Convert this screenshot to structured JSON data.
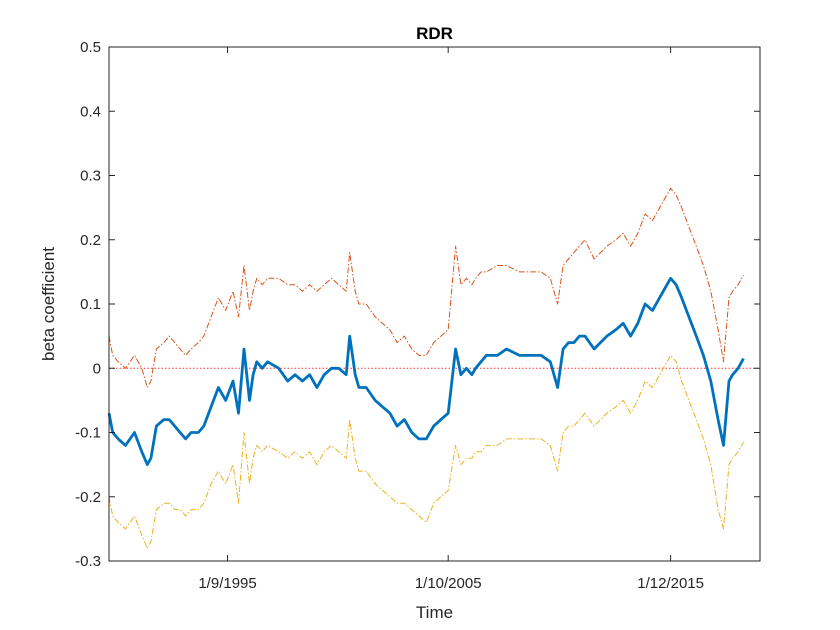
{
  "chart_data": {
    "type": "line",
    "title": "RDR",
    "xlabel": "Time",
    "ylabel": "beta coefficient",
    "xlim": [
      "1990-04-01",
      "2020-01-01"
    ],
    "ylim": [
      -0.3,
      0.5
    ],
    "yticks": [
      -0.3,
      -0.2,
      -0.1,
      0,
      0.1,
      0.2,
      0.3,
      0.4,
      0.5
    ],
    "ytick_labels": [
      "-0.3",
      "-0.2",
      "-0.1",
      "0",
      "0.1",
      "0.2",
      "0.3",
      "0.4",
      "0.5"
    ],
    "xticks": [
      "1995-09-01",
      "2005-10-01",
      "2015-12-01"
    ],
    "xtick_labels": [
      "1/9/1995",
      "1/10/2005",
      "1/12/2015"
    ],
    "grid": false,
    "legend": "none",
    "reference_line": {
      "y": 0,
      "color": "#ff3333",
      "style": "dotted"
    },
    "series": [
      {
        "role": "estimate",
        "color": "#0072bd",
        "style": "solid",
        "x": [
          "1990-04-01",
          "1990-06-01",
          "1990-09-01",
          "1991-01-01",
          "1991-06-01",
          "1991-10-01",
          "1992-01-01",
          "1992-03-01",
          "1992-06-01",
          "1992-10-01",
          "1993-01-01",
          "1993-04-01",
          "1993-07-01",
          "1993-10-01",
          "1994-01-01",
          "1994-05-01",
          "1994-08-01",
          "1994-12-01",
          "1995-04-01",
          "1995-08-01",
          "1995-12-01",
          "1996-03-01",
          "1996-06-01",
          "1996-09-01",
          "1996-11-01",
          "1997-01-01",
          "1997-04-01",
          "1997-07-01",
          "1998-01-01",
          "1998-06-01",
          "1998-10-01",
          "1999-02-01",
          "1999-06-01",
          "1999-10-01",
          "2000-02-01",
          "2000-06-01",
          "2000-10-01",
          "2001-02-01",
          "2001-04-01",
          "2001-07-01",
          "2001-09-01",
          "2002-01-01",
          "2002-06-01",
          "2002-10-01",
          "2003-02-01",
          "2003-06-01",
          "2003-10-01",
          "2004-02-01",
          "2004-06-01",
          "2004-10-01",
          "2005-02-01",
          "2005-06-01",
          "2005-10-01",
          "2006-02-01",
          "2006-05-01",
          "2006-08-01",
          "2006-11-01",
          "2007-01-01",
          "2007-04-01",
          "2007-07-01",
          "2008-01-01",
          "2008-06-01",
          "2009-01-01",
          "2009-06-01",
          "2010-01-01",
          "2010-06-01",
          "2010-10-01",
          "2011-01-01",
          "2011-04-01",
          "2011-07-01",
          "2011-10-01",
          "2012-01-01",
          "2012-06-01",
          "2013-01-01",
          "2013-06-01",
          "2013-10-01",
          "2014-02-01",
          "2014-06-01",
          "2014-10-01",
          "2015-02-01",
          "2015-06-01",
          "2015-12-01",
          "2016-03-01",
          "2016-06-01",
          "2016-10-01",
          "2017-02-01",
          "2017-06-01",
          "2017-10-01",
          "2018-02-01",
          "2018-05-01",
          "2018-08-01",
          "2018-10-01",
          "2019-01-01",
          "2019-04-01"
        ],
        "y": [
          -0.07,
          -0.1,
          -0.11,
          -0.12,
          -0.1,
          -0.13,
          -0.15,
          -0.14,
          -0.09,
          -0.08,
          -0.08,
          -0.09,
          -0.1,
          -0.11,
          -0.1,
          -0.1,
          -0.09,
          -0.06,
          -0.03,
          -0.05,
          -0.02,
          -0.07,
          0.03,
          -0.05,
          -0.01,
          0.01,
          0.0,
          0.01,
          0.0,
          -0.02,
          -0.01,
          -0.02,
          -0.01,
          -0.03,
          -0.01,
          0.0,
          0.0,
          -0.01,
          0.05,
          -0.01,
          -0.03,
          -0.03,
          -0.05,
          -0.06,
          -0.07,
          -0.09,
          -0.08,
          -0.1,
          -0.11,
          -0.11,
          -0.09,
          -0.08,
          -0.07,
          0.03,
          -0.01,
          0.0,
          -0.01,
          0.0,
          0.01,
          0.02,
          0.02,
          0.03,
          0.02,
          0.02,
          0.02,
          0.01,
          -0.03,
          0.03,
          0.04,
          0.04,
          0.05,
          0.05,
          0.03,
          0.05,
          0.06,
          0.07,
          0.05,
          0.07,
          0.1,
          0.09,
          0.11,
          0.14,
          0.13,
          0.11,
          0.08,
          0.05,
          0.02,
          -0.02,
          -0.08,
          -0.12,
          -0.02,
          -0.01,
          0.0,
          0.015
        ]
      },
      {
        "role": "upper",
        "color": "#d95319",
        "style": "dashdot",
        "x": [
          "1990-04-01",
          "1990-06-01",
          "1990-09-01",
          "1991-01-01",
          "1991-06-01",
          "1991-10-01",
          "1992-01-01",
          "1992-03-01",
          "1992-06-01",
          "1992-10-01",
          "1993-01-01",
          "1993-04-01",
          "1993-07-01",
          "1993-10-01",
          "1994-01-01",
          "1994-05-01",
          "1994-08-01",
          "1994-12-01",
          "1995-04-01",
          "1995-08-01",
          "1995-12-01",
          "1996-03-01",
          "1996-06-01",
          "1996-09-01",
          "1996-11-01",
          "1997-01-01",
          "1997-04-01",
          "1997-07-01",
          "1998-01-01",
          "1998-06-01",
          "1998-10-01",
          "1999-02-01",
          "1999-06-01",
          "1999-10-01",
          "2000-02-01",
          "2000-06-01",
          "2000-10-01",
          "2001-02-01",
          "2001-04-01",
          "2001-07-01",
          "2001-09-01",
          "2002-01-01",
          "2002-06-01",
          "2002-10-01",
          "2003-02-01",
          "2003-06-01",
          "2003-10-01",
          "2004-02-01",
          "2004-06-01",
          "2004-10-01",
          "2005-02-01",
          "2005-06-01",
          "2005-10-01",
          "2006-02-01",
          "2006-05-01",
          "2006-08-01",
          "2006-11-01",
          "2007-01-01",
          "2007-04-01",
          "2007-07-01",
          "2008-01-01",
          "2008-06-01",
          "2009-01-01",
          "2009-06-01",
          "2010-01-01",
          "2010-06-01",
          "2010-10-01",
          "2011-01-01",
          "2011-04-01",
          "2011-07-01",
          "2011-10-01",
          "2012-01-01",
          "2012-06-01",
          "2013-01-01",
          "2013-06-01",
          "2013-10-01",
          "2014-02-01",
          "2014-06-01",
          "2014-10-01",
          "2015-02-01",
          "2015-06-01",
          "2015-12-01",
          "2016-03-01",
          "2016-06-01",
          "2016-10-01",
          "2017-02-01",
          "2017-06-01",
          "2017-10-01",
          "2018-02-01",
          "2018-05-01",
          "2018-08-01",
          "2018-10-01",
          "2019-01-01",
          "2019-04-01"
        ],
        "y": [
          0.05,
          0.02,
          0.01,
          0.0,
          0.02,
          0.0,
          -0.03,
          -0.02,
          0.03,
          0.04,
          0.05,
          0.04,
          0.03,
          0.02,
          0.03,
          0.04,
          0.05,
          0.08,
          0.11,
          0.09,
          0.12,
          0.08,
          0.16,
          0.09,
          0.12,
          0.14,
          0.13,
          0.14,
          0.14,
          0.13,
          0.13,
          0.12,
          0.13,
          0.12,
          0.13,
          0.14,
          0.13,
          0.12,
          0.18,
          0.12,
          0.1,
          0.1,
          0.08,
          0.07,
          0.06,
          0.04,
          0.05,
          0.03,
          0.02,
          0.02,
          0.04,
          0.05,
          0.06,
          0.19,
          0.13,
          0.14,
          0.13,
          0.14,
          0.15,
          0.15,
          0.16,
          0.16,
          0.15,
          0.15,
          0.15,
          0.14,
          0.1,
          0.16,
          0.17,
          0.18,
          0.19,
          0.2,
          0.17,
          0.19,
          0.2,
          0.21,
          0.19,
          0.21,
          0.24,
          0.23,
          0.25,
          0.28,
          0.27,
          0.25,
          0.22,
          0.19,
          0.16,
          0.12,
          0.06,
          0.01,
          0.11,
          0.12,
          0.13,
          0.145
        ]
      },
      {
        "role": "lower",
        "color": "#edb120",
        "style": "dashdot",
        "x": [
          "1990-04-01",
          "1990-06-01",
          "1990-09-01",
          "1991-01-01",
          "1991-06-01",
          "1991-10-01",
          "1992-01-01",
          "1992-03-01",
          "1992-06-01",
          "1992-10-01",
          "1993-01-01",
          "1993-04-01",
          "1993-07-01",
          "1993-10-01",
          "1994-01-01",
          "1994-05-01",
          "1994-08-01",
          "1994-12-01",
          "1995-04-01",
          "1995-08-01",
          "1995-12-01",
          "1996-03-01",
          "1996-06-01",
          "1996-09-01",
          "1996-11-01",
          "1997-01-01",
          "1997-04-01",
          "1997-07-01",
          "1998-01-01",
          "1998-06-01",
          "1998-10-01",
          "1999-02-01",
          "1999-06-01",
          "1999-10-01",
          "2000-02-01",
          "2000-06-01",
          "2000-10-01",
          "2001-02-01",
          "2001-04-01",
          "2001-07-01",
          "2001-09-01",
          "2002-01-01",
          "2002-06-01",
          "2002-10-01",
          "2003-02-01",
          "2003-06-01",
          "2003-10-01",
          "2004-02-01",
          "2004-06-01",
          "2004-10-01",
          "2005-02-01",
          "2005-06-01",
          "2005-10-01",
          "2006-02-01",
          "2006-05-01",
          "2006-08-01",
          "2006-11-01",
          "2007-01-01",
          "2007-04-01",
          "2007-07-01",
          "2008-01-01",
          "2008-06-01",
          "2009-01-01",
          "2009-06-01",
          "2010-01-01",
          "2010-06-01",
          "2010-10-01",
          "2011-01-01",
          "2011-04-01",
          "2011-07-01",
          "2011-10-01",
          "2012-01-01",
          "2012-06-01",
          "2013-01-01",
          "2013-06-01",
          "2013-10-01",
          "2014-02-01",
          "2014-06-01",
          "2014-10-01",
          "2015-02-01",
          "2015-06-01",
          "2015-12-01",
          "2016-03-01",
          "2016-06-01",
          "2016-10-01",
          "2017-02-01",
          "2017-06-01",
          "2017-10-01",
          "2018-02-01",
          "2018-05-01",
          "2018-08-01",
          "2018-10-01",
          "2019-01-01",
          "2019-04-01"
        ],
        "y": [
          -0.2,
          -0.23,
          -0.24,
          -0.25,
          -0.23,
          -0.26,
          -0.28,
          -0.27,
          -0.22,
          -0.21,
          -0.21,
          -0.22,
          -0.22,
          -0.23,
          -0.22,
          -0.22,
          -0.21,
          -0.18,
          -0.16,
          -0.18,
          -0.15,
          -0.21,
          -0.1,
          -0.18,
          -0.14,
          -0.12,
          -0.13,
          -0.12,
          -0.13,
          -0.14,
          -0.13,
          -0.14,
          -0.13,
          -0.15,
          -0.13,
          -0.12,
          -0.13,
          -0.14,
          -0.08,
          -0.14,
          -0.16,
          -0.16,
          -0.18,
          -0.19,
          -0.2,
          -0.21,
          -0.21,
          -0.22,
          -0.23,
          -0.24,
          -0.21,
          -0.2,
          -0.19,
          -0.12,
          -0.15,
          -0.14,
          -0.14,
          -0.13,
          -0.13,
          -0.12,
          -0.12,
          -0.11,
          -0.11,
          -0.11,
          -0.11,
          -0.12,
          -0.16,
          -0.1,
          -0.09,
          -0.09,
          -0.08,
          -0.07,
          -0.09,
          -0.07,
          -0.06,
          -0.05,
          -0.07,
          -0.05,
          -0.02,
          -0.03,
          -0.01,
          0.02,
          0.01,
          -0.02,
          -0.05,
          -0.08,
          -0.11,
          -0.15,
          -0.22,
          -0.25,
          -0.15,
          -0.14,
          -0.13,
          -0.115
        ]
      }
    ]
  }
}
